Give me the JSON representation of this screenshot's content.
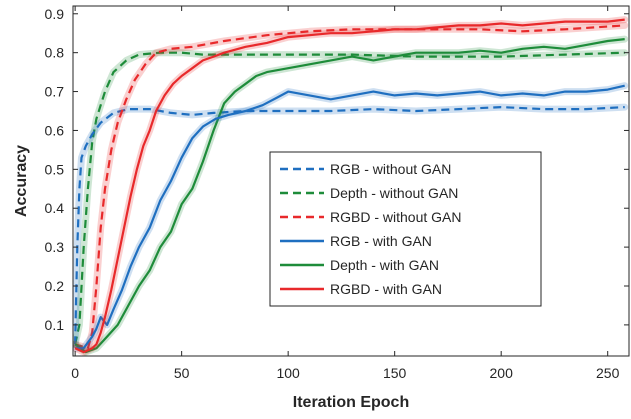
{
  "chart_data": {
    "type": "line",
    "title": "",
    "xlabel": "Iteration Epoch",
    "ylabel": "Accuracy",
    "xlim": [
      -1,
      260
    ],
    "ylim": [
      0.02,
      0.92
    ],
    "xticks": [
      0,
      50,
      100,
      150,
      200,
      250
    ],
    "yticks": [
      0.1,
      0.2,
      0.3,
      0.4,
      0.5,
      0.6,
      0.7,
      0.8,
      0.9
    ],
    "ytick_labels": [
      "0.1",
      "0.2",
      "0.3",
      "0.4",
      "0.5",
      "0.6",
      "0.7",
      "0.8",
      "0.9"
    ],
    "grid": false,
    "legend_position": "center-right",
    "series": [
      {
        "name": "RGB - without GAN",
        "color": "#1f6fc0",
        "style": "dashed",
        "points": [
          [
            0,
            0.05
          ],
          [
            1,
            0.3
          ],
          [
            2,
            0.45
          ],
          [
            3,
            0.53
          ],
          [
            5,
            0.56
          ],
          [
            8,
            0.59
          ],
          [
            12,
            0.62
          ],
          [
            18,
            0.645
          ],
          [
            25,
            0.655
          ],
          [
            35,
            0.655
          ],
          [
            45,
            0.645
          ],
          [
            55,
            0.64
          ],
          [
            65,
            0.645
          ],
          [
            80,
            0.65
          ],
          [
            100,
            0.65
          ],
          [
            120,
            0.65
          ],
          [
            140,
            0.655
          ],
          [
            160,
            0.65
          ],
          [
            180,
            0.655
          ],
          [
            200,
            0.66
          ],
          [
            220,
            0.655
          ],
          [
            240,
            0.655
          ],
          [
            258,
            0.66
          ]
        ]
      },
      {
        "name": "Depth - without GAN",
        "color": "#1e8c3a",
        "style": "dashed",
        "points": [
          [
            0,
            0.05
          ],
          [
            2,
            0.1
          ],
          [
            4,
            0.3
          ],
          [
            6,
            0.45
          ],
          [
            8,
            0.57
          ],
          [
            10,
            0.63
          ],
          [
            14,
            0.7
          ],
          [
            18,
            0.75
          ],
          [
            24,
            0.78
          ],
          [
            30,
            0.795
          ],
          [
            40,
            0.8
          ],
          [
            50,
            0.8
          ],
          [
            60,
            0.795
          ],
          [
            80,
            0.795
          ],
          [
            100,
            0.795
          ],
          [
            130,
            0.795
          ],
          [
            160,
            0.79
          ],
          [
            200,
            0.79
          ],
          [
            230,
            0.795
          ],
          [
            258,
            0.8
          ]
        ]
      },
      {
        "name": "RGBD - without GAN",
        "color": "#e8292b",
        "style": "dashed",
        "points": [
          [
            0,
            0.05
          ],
          [
            6,
            0.04
          ],
          [
            8,
            0.08
          ],
          [
            10,
            0.2
          ],
          [
            12,
            0.35
          ],
          [
            14,
            0.45
          ],
          [
            17,
            0.55
          ],
          [
            20,
            0.62
          ],
          [
            24,
            0.68
          ],
          [
            28,
            0.73
          ],
          [
            33,
            0.77
          ],
          [
            38,
            0.8
          ],
          [
            45,
            0.81
          ],
          [
            55,
            0.815
          ],
          [
            70,
            0.83
          ],
          [
            90,
            0.845
          ],
          [
            110,
            0.855
          ],
          [
            130,
            0.86
          ],
          [
            150,
            0.86
          ],
          [
            170,
            0.86
          ],
          [
            190,
            0.86
          ],
          [
            210,
            0.855
          ],
          [
            230,
            0.86
          ],
          [
            258,
            0.87
          ]
        ]
      },
      {
        "name": "RGB - with GAN",
        "color": "#1f6fc0",
        "style": "solid",
        "points": [
          [
            0,
            0.04
          ],
          [
            4,
            0.04
          ],
          [
            8,
            0.07
          ],
          [
            10,
            0.09
          ],
          [
            12,
            0.12
          ],
          [
            15,
            0.1
          ],
          [
            18,
            0.14
          ],
          [
            22,
            0.19
          ],
          [
            26,
            0.25
          ],
          [
            30,
            0.3
          ],
          [
            35,
            0.35
          ],
          [
            40,
            0.42
          ],
          [
            45,
            0.47
          ],
          [
            50,
            0.53
          ],
          [
            55,
            0.58
          ],
          [
            60,
            0.61
          ],
          [
            66,
            0.63
          ],
          [
            72,
            0.64
          ],
          [
            80,
            0.65
          ],
          [
            88,
            0.665
          ],
          [
            95,
            0.685
          ],
          [
            100,
            0.7
          ],
          [
            110,
            0.69
          ],
          [
            120,
            0.68
          ],
          [
            130,
            0.69
          ],
          [
            140,
            0.7
          ],
          [
            150,
            0.69
          ],
          [
            160,
            0.695
          ],
          [
            170,
            0.69
          ],
          [
            180,
            0.695
          ],
          [
            190,
            0.7
          ],
          [
            200,
            0.69
          ],
          [
            210,
            0.695
          ],
          [
            220,
            0.69
          ],
          [
            230,
            0.7
          ],
          [
            240,
            0.7
          ],
          [
            250,
            0.705
          ],
          [
            258,
            0.715
          ]
        ]
      },
      {
        "name": "Depth - with GAN",
        "color": "#1e8c3a",
        "style": "solid",
        "points": [
          [
            0,
            0.05
          ],
          [
            5,
            0.03
          ],
          [
            10,
            0.04
          ],
          [
            15,
            0.07
          ],
          [
            20,
            0.1
          ],
          [
            25,
            0.15
          ],
          [
            30,
            0.2
          ],
          [
            35,
            0.24
          ],
          [
            40,
            0.3
          ],
          [
            45,
            0.34
          ],
          [
            50,
            0.41
          ],
          [
            55,
            0.45
          ],
          [
            60,
            0.52
          ],
          [
            65,
            0.6
          ],
          [
            70,
            0.67
          ],
          [
            75,
            0.7
          ],
          [
            80,
            0.72
          ],
          [
            85,
            0.74
          ],
          [
            90,
            0.75
          ],
          [
            100,
            0.76
          ],
          [
            110,
            0.77
          ],
          [
            120,
            0.78
          ],
          [
            130,
            0.79
          ],
          [
            140,
            0.78
          ],
          [
            150,
            0.79
          ],
          [
            160,
            0.8
          ],
          [
            170,
            0.8
          ],
          [
            180,
            0.8
          ],
          [
            190,
            0.805
          ],
          [
            200,
            0.8
          ],
          [
            210,
            0.81
          ],
          [
            220,
            0.815
          ],
          [
            230,
            0.81
          ],
          [
            240,
            0.82
          ],
          [
            250,
            0.83
          ],
          [
            258,
            0.835
          ]
        ]
      },
      {
        "name": "RGBD - with GAN",
        "color": "#e8292b",
        "style": "solid",
        "points": [
          [
            0,
            0.04
          ],
          [
            4,
            0.03
          ],
          [
            8,
            0.04
          ],
          [
            10,
            0.05
          ],
          [
            12,
            0.08
          ],
          [
            14,
            0.12
          ],
          [
            17,
            0.19
          ],
          [
            20,
            0.27
          ],
          [
            23,
            0.35
          ],
          [
            26,
            0.43
          ],
          [
            29,
            0.5
          ],
          [
            32,
            0.56
          ],
          [
            35,
            0.6
          ],
          [
            38,
            0.65
          ],
          [
            42,
            0.69
          ],
          [
            46,
            0.72
          ],
          [
            50,
            0.74
          ],
          [
            55,
            0.76
          ],
          [
            60,
            0.78
          ],
          [
            65,
            0.79
          ],
          [
            70,
            0.8
          ],
          [
            80,
            0.815
          ],
          [
            90,
            0.825
          ],
          [
            100,
            0.84
          ],
          [
            110,
            0.845
          ],
          [
            120,
            0.85
          ],
          [
            130,
            0.85
          ],
          [
            140,
            0.855
          ],
          [
            150,
            0.86
          ],
          [
            160,
            0.86
          ],
          [
            170,
            0.865
          ],
          [
            180,
            0.87
          ],
          [
            190,
            0.87
          ],
          [
            200,
            0.875
          ],
          [
            210,
            0.87
          ],
          [
            220,
            0.875
          ],
          [
            230,
            0.88
          ],
          [
            240,
            0.88
          ],
          [
            250,
            0.88
          ],
          [
            258,
            0.885
          ]
        ]
      }
    ]
  }
}
